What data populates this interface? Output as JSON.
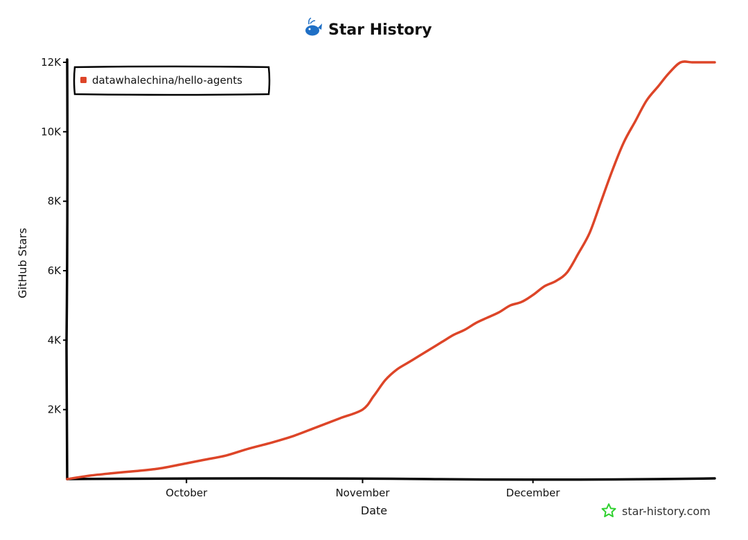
{
  "chart_data": {
    "type": "line",
    "title": "Star History",
    "xlabel": "Date",
    "ylabel": "GitHub Stars",
    "x_ticks": [
      {
        "label": "October",
        "day": 45
      },
      {
        "label": "November",
        "day": 76
      },
      {
        "label": "December",
        "day": 106
      }
    ],
    "x_range_days": [
      24,
      138
    ],
    "ylim": [
      0,
      12000
    ],
    "y_ticks": [
      {
        "label": "2K",
        "value": 2000
      },
      {
        "label": "4K",
        "value": 4000
      },
      {
        "label": "6K",
        "value": 6000
      },
      {
        "label": "8K",
        "value": 8000
      },
      {
        "label": "10K",
        "value": 10000
      },
      {
        "label": "12K",
        "value": 12000
      }
    ],
    "legend_position": "top-left",
    "series": [
      {
        "name": "datawhalechina/hello-agents",
        "color": "#dd4528",
        "days": [
          24,
          28,
          32,
          36,
          40,
          44,
          48,
          52,
          56,
          60,
          64,
          68,
          72,
          76,
          78,
          80,
          82,
          84,
          86,
          88,
          90,
          92,
          94,
          96,
          98,
          100,
          102,
          104,
          106,
          108,
          110,
          112,
          114,
          116,
          118,
          120,
          122,
          124,
          126,
          128,
          130,
          132,
          134,
          136,
          138
        ],
        "values": [
          0,
          100,
          170,
          230,
          300,
          420,
          550,
          680,
          880,
          1050,
          1250,
          1500,
          1750,
          2000,
          2400,
          2850,
          3150,
          3350,
          3550,
          3750,
          3950,
          4150,
          4300,
          4500,
          4650,
          4800,
          5000,
          5100,
          5300,
          5550,
          5700,
          5950,
          6500,
          7100,
          8000,
          8900,
          9700,
          10300,
          10900,
          11300,
          11700,
          12000,
          12000,
          12000,
          12000
        ]
      }
    ]
  },
  "watermark": {
    "text": "star-history.com",
    "icon": "star-outline-icon",
    "icon_color": "#2fd12f"
  },
  "title_icon": {
    "name": "whale-icon",
    "color": "#1f6fc5"
  }
}
